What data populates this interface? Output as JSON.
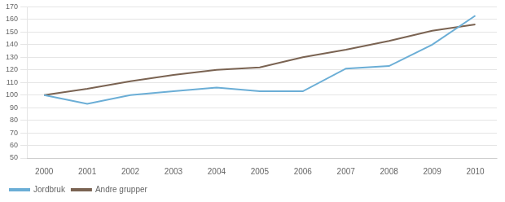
{
  "chart_data": {
    "type": "line",
    "x": [
      2000,
      2001,
      2002,
      2003,
      2004,
      2005,
      2006,
      2007,
      2008,
      2009,
      2010
    ],
    "series": [
      {
        "name": "Jordbruk",
        "color": "#6baed6",
        "values": [
          100,
          93,
          100,
          103,
          106,
          103,
          103,
          121,
          123,
          140,
          163
        ]
      },
      {
        "name": "Andre grupper",
        "color": "#7a6352",
        "values": [
          100,
          105,
          111,
          116,
          120,
          122,
          130,
          136,
          143,
          151,
          156
        ]
      }
    ],
    "xlim": [
      1999.6,
      2010.5
    ],
    "xticks": [
      2000,
      2001,
      2002,
      2003,
      2004,
      2005,
      2006,
      2007,
      2008,
      2009,
      2010
    ],
    "ylim": [
      50,
      170
    ],
    "yticks": [
      50,
      60,
      70,
      80,
      90,
      100,
      110,
      120,
      130,
      140,
      150,
      160,
      170
    ],
    "grid": "y",
    "legend": "lower left"
  }
}
